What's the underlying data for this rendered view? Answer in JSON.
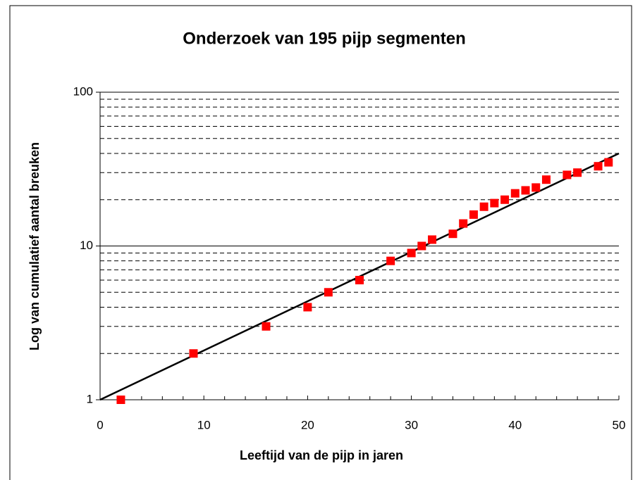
{
  "chart_data": {
    "type": "scatter",
    "title": "Onderzoek van 195 pijp segmenten",
    "xlabel": "Leeftijd van de pijp in jaren",
    "ylabel": "Log van cumulatief aantal breuken",
    "x": [
      2,
      9,
      16,
      20,
      22,
      25,
      28,
      30,
      31,
      32,
      34,
      35,
      36,
      37,
      38,
      39,
      40,
      41,
      42,
      43,
      45,
      46,
      48,
      49
    ],
    "values": [
      1,
      2,
      3,
      4,
      5,
      6,
      8,
      9,
      10,
      11,
      12,
      14,
      16,
      18,
      19,
      20,
      22,
      23,
      24,
      27,
      29,
      30,
      33,
      35
    ],
    "color": "#ff0000",
    "trend": {
      "x": [
        0,
        50
      ],
      "values": [
        1,
        40
      ],
      "color": "#000000"
    },
    "xlim": [
      0,
      50
    ],
    "xticks": [
      0,
      10,
      20,
      30,
      40,
      50
    ],
    "xminor_ticks": [
      2,
      4,
      6,
      8,
      12,
      14,
      16,
      18,
      22,
      24,
      26,
      28,
      32,
      34,
      36,
      38,
      42,
      44,
      46,
      48
    ],
    "ylim": [
      1,
      100
    ],
    "yticks": [
      1,
      10,
      100
    ],
    "log_y": true,
    "yminor_grid": [
      2,
      3,
      4,
      5,
      6,
      7,
      8,
      9,
      20,
      30,
      40,
      50,
      60,
      70,
      80,
      90
    ],
    "grid": true
  }
}
